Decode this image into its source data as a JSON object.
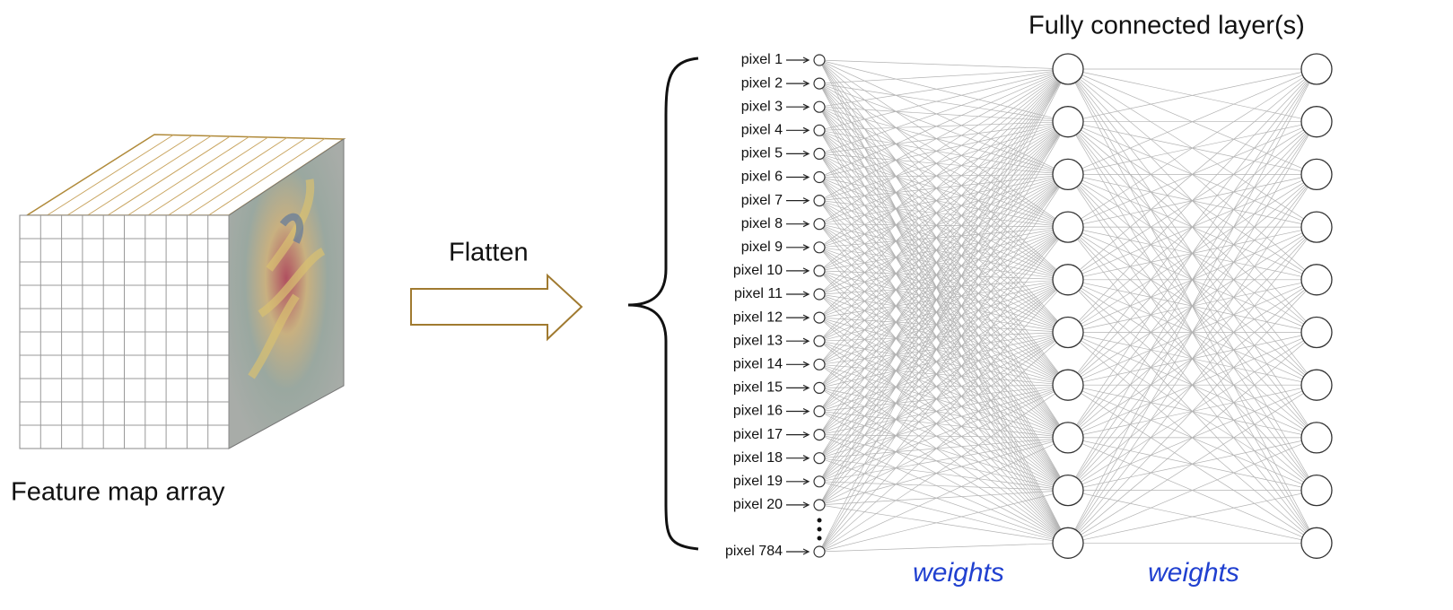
{
  "feature_map": {
    "label": "Feature map array"
  },
  "flatten": {
    "label": "Flatten"
  },
  "network": {
    "title": "Fully connected layer(s)",
    "inputs": [
      "pixel 1",
      "pixel 2",
      "pixel 3",
      "pixel 4",
      "pixel 5",
      "pixel 6",
      "pixel 7",
      "pixel 8",
      "pixel 9",
      "pixel 10",
      "pixel 11",
      "pixel 12",
      "pixel 13",
      "pixel 14",
      "pixel 15",
      "pixel 16",
      "pixel 17",
      "pixel 18",
      "pixel 19",
      "pixel 20",
      "pixel 784"
    ],
    "weights": [
      "weights",
      "weights"
    ]
  }
}
